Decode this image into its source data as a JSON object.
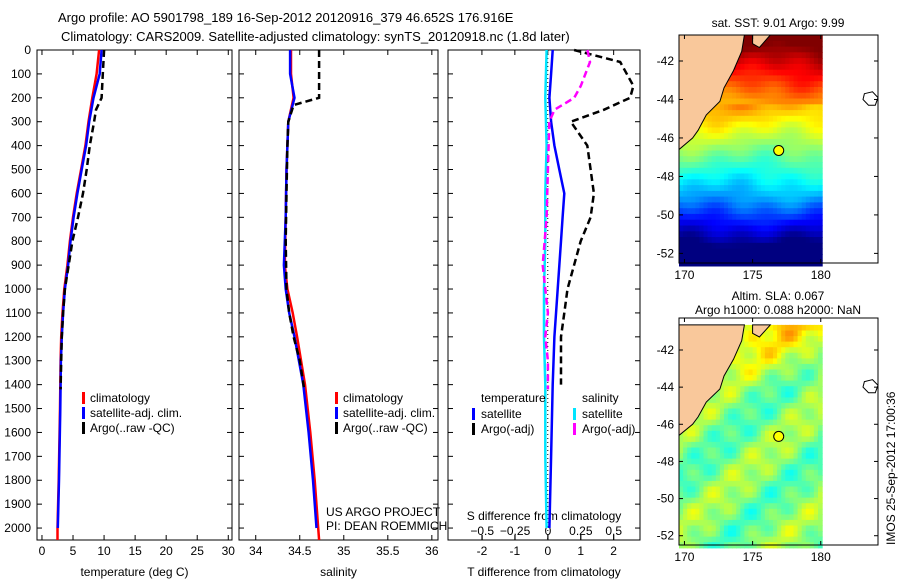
{
  "title_line1": "Argo profile: AO 5901798_189 16-Sep-2012 20120916_379 46.652S 176.916E",
  "title_line2": "Climatology: CARS2009. Satellite-adjusted climatology: synTS_20120918.nc (1.8d later)",
  "project_line1": "US ARGO PROJECT",
  "project_line2": "PI: DEAN ROEMMICH",
  "imos_stamp": "IMOS 25-Sep-2012 17:00:36",
  "colors": {
    "climatology": "#ff0000",
    "satellite": "#0000ff",
    "argo": "#000000",
    "sal_satellite": "#00e5ff",
    "sal_argo": "#ff00ff",
    "land": "#f9c89b"
  },
  "chart_data": [
    {
      "type": "line",
      "id": "temperature",
      "xlabel": "temperature (deg C)",
      "ylabel": "",
      "xlim": [
        -0.8,
        30.6
      ],
      "ylim": [
        2050,
        0
      ],
      "xticks": [
        0,
        5,
        10,
        15,
        20,
        25,
        30
      ],
      "yticks": [
        0,
        100,
        200,
        300,
        400,
        500,
        600,
        700,
        800,
        900,
        1000,
        1100,
        1200,
        1300,
        1400,
        1500,
        1600,
        1700,
        1800,
        1900,
        2000
      ],
      "legend": [
        "climatology",
        "satellite-adj. clim.",
        "Argo(..raw -QC)"
      ],
      "series": [
        {
          "name": "climatology",
          "color": "#ff0000",
          "dash": false,
          "depth": [
            0,
            100,
            200,
            300,
            400,
            500,
            600,
            700,
            800,
            900,
            1000,
            1100,
            1200,
            1300,
            1500,
            1800,
            2000,
            2050
          ],
          "values": [
            9.2,
            8.8,
            8.1,
            7.5,
            7.0,
            6.3,
            5.6,
            5.0,
            4.5,
            4.1,
            3.6,
            3.3,
            3.1,
            3.0,
            2.9,
            2.7,
            2.5,
            2.5
          ]
        },
        {
          "name": "satellite-adj. clim.",
          "color": "#0000ff",
          "dash": false,
          "depth": [
            0,
            100,
            200,
            300,
            400,
            500,
            600,
            700,
            800,
            900,
            1000,
            1100,
            1200,
            1300,
            1500,
            1800,
            2000
          ],
          "values": [
            9.6,
            9.3,
            8.3,
            7.6,
            7.1,
            6.4,
            5.7,
            5.1,
            4.6,
            4.2,
            3.7,
            3.4,
            3.2,
            3.05,
            2.95,
            2.75,
            2.55
          ]
        },
        {
          "name": "Argo(..raw -QC)",
          "color": "#000000",
          "dash": true,
          "depth": [
            0,
            100,
            200,
            250,
            300,
            400,
            500,
            600,
            700,
            800,
            900,
            1000,
            1100,
            1200,
            1300,
            1420
          ],
          "values": [
            10.0,
            9.8,
            9.6,
            8.7,
            8.4,
            7.7,
            7.2,
            6.6,
            5.8,
            4.9,
            4.3,
            3.7,
            3.4,
            3.2,
            3.1,
            3.0
          ]
        }
      ]
    },
    {
      "type": "line",
      "id": "salinity",
      "xlabel": "salinity",
      "ylabel": "",
      "xlim": [
        33.81,
        36.07
      ],
      "ylim": [
        2050,
        0
      ],
      "xticks": [
        34,
        34.5,
        35,
        35.5,
        36
      ],
      "legend": [
        "climatology",
        "satellite-adj. clim.",
        "Argo(..raw -QC)"
      ],
      "series": [
        {
          "name": "climatology",
          "color": "#ff0000",
          "dash": false,
          "depth": [
            0,
            100,
            200,
            300,
            500,
            700,
            900,
            1000,
            1100,
            1200,
            1400,
            1600,
            1800,
            2000,
            2050
          ],
          "values": [
            34.4,
            34.4,
            34.43,
            34.37,
            34.35,
            34.34,
            34.33,
            34.36,
            34.42,
            34.47,
            34.56,
            34.62,
            34.67,
            34.71,
            34.72
          ]
        },
        {
          "name": "satellite-adj. clim.",
          "color": "#0000ff",
          "dash": false,
          "depth": [
            0,
            100,
            200,
            300,
            500,
            700,
            900,
            1000,
            1100,
            1200,
            1400,
            1600,
            1800,
            2000
          ],
          "values": [
            34.39,
            34.39,
            34.44,
            34.37,
            34.35,
            34.34,
            34.32,
            34.34,
            34.38,
            34.44,
            34.54,
            34.6,
            34.65,
            34.69
          ]
        },
        {
          "name": "Argo(..raw -QC)",
          "color": "#000000",
          "dash": true,
          "depth": [
            0,
            100,
            200,
            230,
            300,
            400,
            600,
            800,
            1000,
            1100,
            1200,
            1300,
            1420
          ],
          "values": [
            34.72,
            34.72,
            34.72,
            34.43,
            34.37,
            34.36,
            34.35,
            34.34,
            34.35,
            34.38,
            34.43,
            34.5,
            34.55
          ]
        }
      ]
    },
    {
      "type": "line",
      "id": "differences",
      "xlabel": "T difference from climatology",
      "x2label": "S difference from climatology",
      "xlim": [
        -3.03,
        2.8
      ],
      "x2lim": [
        -0.76,
        0.7
      ],
      "ylim": [
        2050,
        0
      ],
      "xticks": [
        -2,
        -1,
        0,
        1,
        2
      ],
      "x2ticks": [
        -0.5,
        -0.25,
        0,
        0.25,
        0.5
      ],
      "legend_headers": [
        "temperature",
        "salinity"
      ],
      "legend": [
        "satellite",
        "Argo(-adj)",
        "satellite",
        "Argo(-adj)"
      ],
      "series": [
        {
          "name": "T satellite",
          "axis": "T",
          "color": "#0000ff",
          "dash": false,
          "depth": [
            0,
            100,
            200,
            300,
            400,
            500,
            600,
            700,
            800,
            1000,
            1200,
            1400,
            1700,
            2000
          ],
          "values": [
            0.15,
            0.1,
            0.05,
            0.1,
            0.2,
            0.35,
            0.5,
            0.45,
            0.4,
            0.3,
            0.2,
            0.15,
            0.1,
            0.05
          ]
        },
        {
          "name": "T Argo(-adj)",
          "axis": "T",
          "color": "#000000",
          "dash": true,
          "depth": [
            0,
            50,
            150,
            200,
            250,
            300,
            400,
            500,
            600,
            700,
            800,
            900,
            1000,
            1100,
            1200,
            1400
          ],
          "values": [
            0.8,
            2.2,
            2.6,
            2.5,
            1.7,
            0.7,
            1.2,
            1.3,
            1.4,
            1.3,
            1.0,
            0.8,
            0.6,
            0.5,
            0.4,
            0.4
          ]
        },
        {
          "name": "S satellite",
          "axis": "S",
          "color": "#00e5ff",
          "dash": false,
          "depth": [
            0,
            200,
            400,
            600,
            800,
            1000,
            1200,
            1400,
            1700,
            2000
          ],
          "values": [
            -0.01,
            -0.02,
            -0.01,
            -0.02,
            -0.02,
            -0.03,
            -0.03,
            -0.02,
            -0.02,
            -0.01
          ]
        },
        {
          "name": "S Argo(-adj)",
          "axis": "S",
          "color": "#ff00ff",
          "dash": true,
          "depth": [
            0,
            50,
            150,
            200,
            250,
            300,
            500,
            700,
            900,
            1000,
            1100,
            1200,
            1300,
            1420
          ],
          "values": [
            0.3,
            0.32,
            0.25,
            0.2,
            0.05,
            0.01,
            0.0,
            -0.01,
            -0.04,
            -0.02,
            0.0,
            -0.02,
            0.0,
            0.0
          ]
        }
      ]
    },
    {
      "type": "heatmap",
      "id": "sst-map",
      "title": "sat. SST: 9.01  Argo: 9.99",
      "xlim": [
        169.6,
        184.2
      ],
      "ylim": [
        -52.5,
        -40.65
      ],
      "xticks": [
        170,
        175,
        180
      ],
      "yticks": [
        -42,
        -44,
        -46,
        -48,
        -50,
        -52
      ],
      "float_position": [
        176.916,
        -46.652
      ]
    },
    {
      "type": "heatmap",
      "id": "sla-map",
      "title": "Altim. SLA: 0.067",
      "subtitle": "Argo h1000: 0.088 h2000: NaN",
      "xlim": [
        169.6,
        184.2
      ],
      "ylim": [
        -52.5,
        -40.65
      ],
      "xticks": [
        170,
        175,
        180
      ],
      "yticks": [
        -42,
        -44,
        -46,
        -48,
        -50,
        -52
      ],
      "float_position": [
        176.916,
        -46.652
      ]
    }
  ]
}
